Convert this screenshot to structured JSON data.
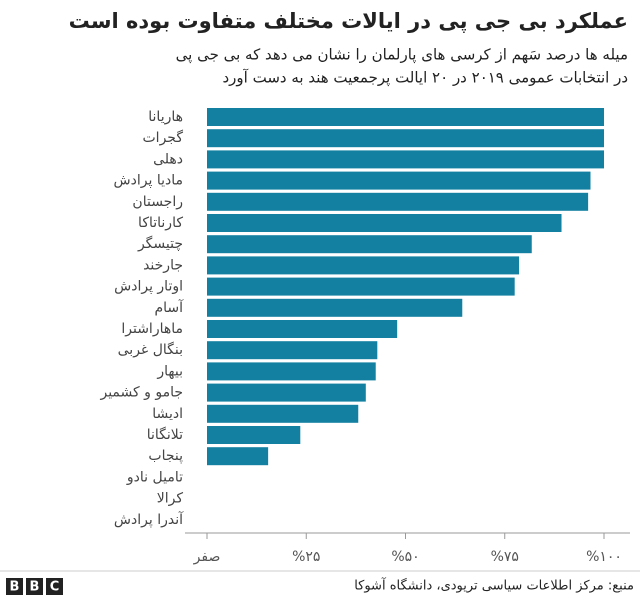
{
  "chart_data": {
    "type": "hbar",
    "title": "عملکرد بی جی پی در ایالات مختلف متفاوت بوده است",
    "subtitle": [
      "میله ها درصد سَهم از کرسی های پارلمان را نشان می دهد که بی جی پی",
      "در انتخابات عمومی ۲۰۱۹ در ۲۰ ایالت پرجمعیت هند به دست آورد"
    ],
    "categories": [
      "هاریانا",
      "گجرات",
      "دهلی",
      "مادیا پرادش",
      "راجستان",
      "کارناتاکا",
      "چتیسگر",
      "جارخند",
      "اوتار پرادش",
      "آسام",
      "ماهاراشترا",
      "بنگال غربی",
      "بیهار",
      "جامو و کشمیر",
      "ادیشا",
      "تلانگانا",
      "پنجاب",
      "تامیل نادو",
      "کرالا",
      "آندرا پرادش"
    ],
    "values": [
      100,
      100,
      100,
      96.6,
      96,
      89.3,
      81.8,
      78.6,
      77.5,
      64.3,
      47.9,
      42.9,
      42.5,
      40,
      38.1,
      23.5,
      15.4,
      0,
      0,
      0
    ],
    "color": "#1380a1",
    "xlim": [
      0,
      100
    ],
    "xticks": [
      {
        "value": 0,
        "label": "صفر"
      },
      {
        "value": 25,
        "label": "%۲۵"
      },
      {
        "value": 50,
        "label": "%۵۰"
      },
      {
        "value": 75,
        "label": "%۷۵"
      },
      {
        "value": 100,
        "label": "%۱۰۰"
      }
    ],
    "source": "منبع: مرکز اطلاعات سیاسی تریودی، دانشگاه آشوکا",
    "logo": [
      "B",
      "B",
      "C"
    ]
  }
}
